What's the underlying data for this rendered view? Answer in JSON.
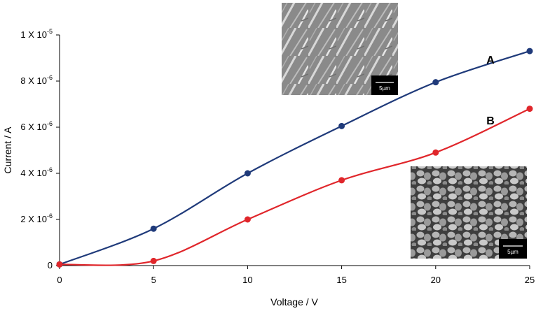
{
  "chart_data": {
    "type": "line",
    "title": "",
    "xlabel": "Voltage / V",
    "ylabel": "Current / A",
    "xlim": [
      0,
      25
    ],
    "ylim": [
      0,
      1e-05
    ],
    "x_ticks": [
      0,
      5,
      10,
      15,
      20,
      25
    ],
    "y_ticks": [
      {
        "value": 0,
        "label": "0",
        "base": "",
        "exp": ""
      },
      {
        "value": 2e-06,
        "label": "2 X 10-6",
        "base": "2 X 10",
        "exp": "-6"
      },
      {
        "value": 4e-06,
        "label": "4 X 10-6",
        "base": "4 X 10",
        "exp": "-6"
      },
      {
        "value": 6e-06,
        "label": "6 X 10-6",
        "base": "6 X 10",
        "exp": "-6"
      },
      {
        "value": 8e-06,
        "label": "8 X 10-6",
        "base": "8 X 10",
        "exp": "-6"
      },
      {
        "value": 1e-05,
        "label": "1 X 10-5",
        "base": "1 X 10",
        "exp": "-5"
      }
    ],
    "grid": false,
    "legend": "none",
    "x": [
      0,
      5,
      10,
      15,
      20,
      25
    ],
    "series": [
      {
        "name": "A",
        "color": "#1f3a7a",
        "values": [
          5e-08,
          1.6e-06,
          4e-06,
          6.05e-06,
          7.95e-06,
          9.3e-06
        ]
      },
      {
        "name": "B",
        "color": "#e0262b",
        "values": [
          5e-08,
          2e-07,
          2e-06,
          3.7e-06,
          4.9e-06,
          6.8e-06
        ]
      }
    ],
    "insets": [
      {
        "name": "sem-image-a",
        "scale_bar": "5µm"
      },
      {
        "name": "sem-image-b",
        "scale_bar": "5µm"
      }
    ]
  }
}
